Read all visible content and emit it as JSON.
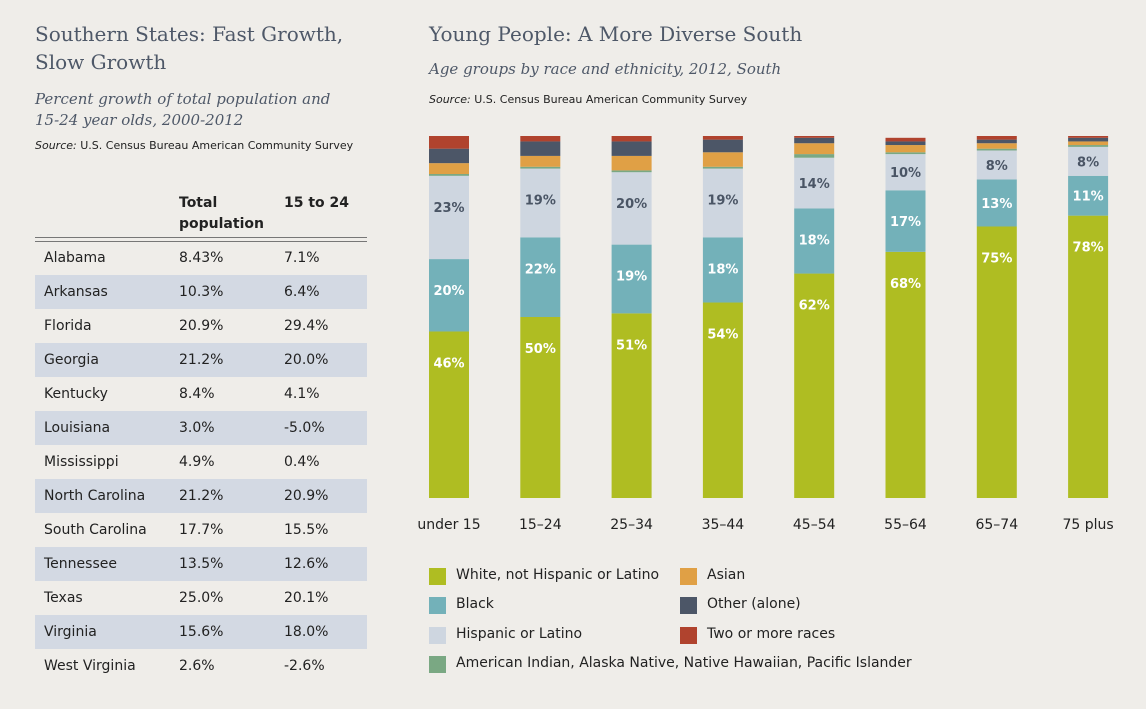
{
  "left": {
    "title_line1": "Southern States: Fast Growth,",
    "title_line2": "Slow Growth",
    "subtitle_line1": "Percent growth of total population and",
    "subtitle_line2": "15-24 year olds, 2000-2012",
    "source_label": "Source:",
    "source_text": "U.S. Census Bureau American Community Survey",
    "table": {
      "col_total_line1": "Total",
      "col_total_line2": "population",
      "col_young": "15 to 24",
      "rows": [
        {
          "state": "Alabama",
          "total": "8.43%",
          "young": "7.1%"
        },
        {
          "state": "Arkansas",
          "total": "10.3%",
          "young": "6.4%"
        },
        {
          "state": "Florida",
          "total": "20.9%",
          "young": "29.4%"
        },
        {
          "state": "Georgia",
          "total": "21.2%",
          "young": "20.0%"
        },
        {
          "state": "Kentucky",
          "total": "8.4%",
          "young": "4.1%"
        },
        {
          "state": "Louisiana",
          "total": "3.0%",
          "young": "-5.0%"
        },
        {
          "state": "Mississippi",
          "total": "4.9%",
          "young": "0.4%"
        },
        {
          "state": "North Carolina",
          "total": "21.2%",
          "young": "20.9%"
        },
        {
          "state": "South Carolina",
          "total": "17.7%",
          "young": "15.5%"
        },
        {
          "state": "Tennessee",
          "total": "13.5%",
          "young": "12.6%"
        },
        {
          "state": "Texas",
          "total": "25.0%",
          "young": "20.1%"
        },
        {
          "state": "Virginia",
          "total": "15.6%",
          "young": "18.0%"
        },
        {
          "state": "West Virginia",
          "total": "2.6%",
          "young": "-2.6%"
        }
      ]
    }
  },
  "right": {
    "title": "Young People: A More Diverse South",
    "subtitle": "Age groups by race and ethnicity, 2012, South",
    "source_label": "Source:",
    "source_text": "U.S. Census Bureau American Community Survey"
  },
  "chart_data": {
    "type": "bar",
    "stacked": true,
    "title": "Young People: A More Diverse South",
    "subtitle": "Age groups by race and ethnicity, 2012, South",
    "categories": [
      "under 15",
      "15–24",
      "25–34",
      "35–44",
      "45–54",
      "55–64",
      "65–74",
      "75 plus"
    ],
    "ylim": [
      0,
      100
    ],
    "series": [
      {
        "name": "White, not Hispanic or Latino",
        "color": "#afbd22",
        "label_color": "#ffffff",
        "values": [
          46,
          50,
          51,
          54,
          62,
          68,
          75,
          78
        ]
      },
      {
        "name": "Black",
        "color": "#73b1b9",
        "label_color": "#ffffff",
        "values": [
          20,
          22,
          19,
          18,
          18,
          17,
          13,
          11
        ]
      },
      {
        "name": "Hispanic or Latino",
        "color": "#ced6e0",
        "label_color": "#4a5565",
        "values": [
          23,
          19,
          20,
          19,
          14,
          10,
          8,
          8
        ]
      },
      {
        "name": "American Indian, Alaska Native, Native Hawaiian, Pacific Islander",
        "color": "#7aa883",
        "label_color": "#ffffff",
        "values": [
          0.5,
          0.5,
          0.5,
          0.5,
          1,
          0.5,
          0.5,
          0.5
        ]
      },
      {
        "name": "Asian",
        "color": "#e0a045",
        "label_color": "#ffffff",
        "values": [
          3,
          3,
          4,
          4,
          3,
          2,
          1.5,
          1
        ]
      },
      {
        "name": "Other (alone)",
        "color": "#4c5667",
        "label_color": "#ffffff",
        "values": [
          4,
          4,
          4,
          3.5,
          1.5,
          1,
          1,
          1
        ]
      },
      {
        "name": "Two or more races",
        "color": "#b0432e",
        "label_color": "#ffffff",
        "values": [
          3.5,
          1.5,
          1.5,
          1,
          0.5,
          1,
          1,
          0.5
        ]
      }
    ],
    "data_labels": [
      {
        "series": 0,
        "texts": [
          "46%",
          "50%",
          "51%",
          "54%",
          "62%",
          "68%",
          "75%",
          "78%"
        ]
      },
      {
        "series": 1,
        "texts": [
          "20%",
          "22%",
          "19%",
          "18%",
          "18%",
          "17%",
          "13%",
          "11%"
        ]
      },
      {
        "series": 2,
        "texts": [
          "23%",
          "19%",
          "20%",
          "19%",
          "14%",
          "10%",
          "8%",
          "8%"
        ]
      }
    ],
    "legend": [
      {
        "series": 0,
        "column": 0
      },
      {
        "series": 4,
        "column": 1
      },
      {
        "series": 1,
        "column": 0
      },
      {
        "series": 5,
        "column": 1
      },
      {
        "series": 2,
        "column": 0
      },
      {
        "series": 6,
        "column": 1
      },
      {
        "series": 3,
        "column": 0
      }
    ]
  }
}
